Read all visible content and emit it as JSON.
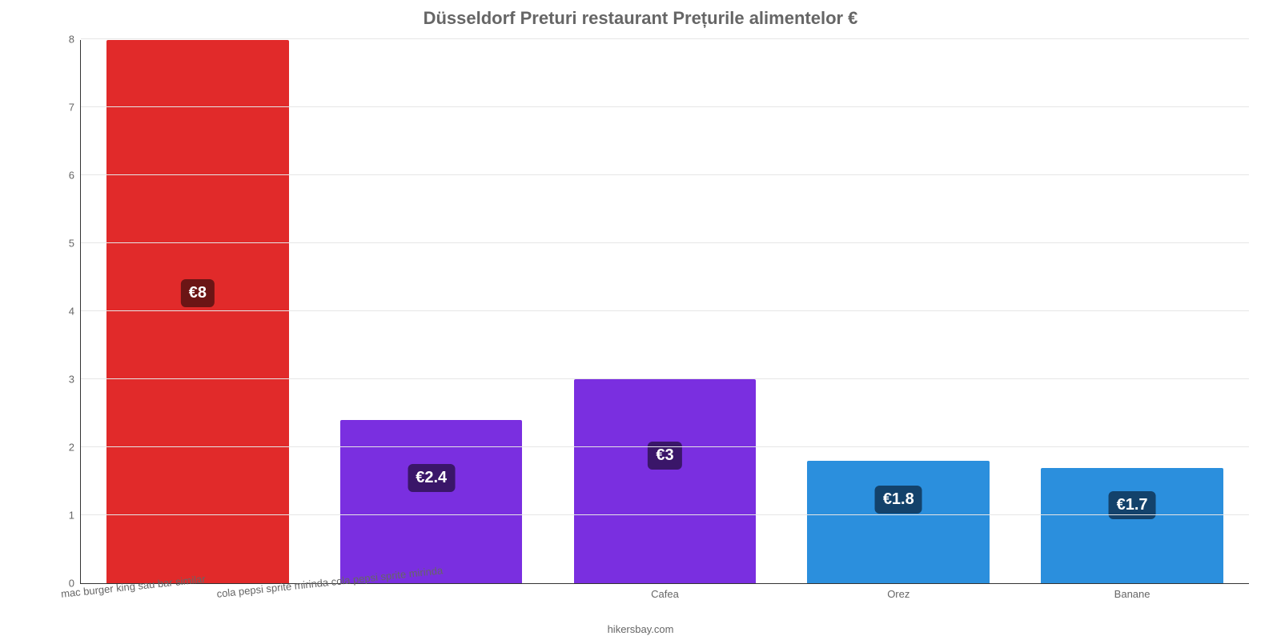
{
  "chart": {
    "type": "bar",
    "title": "Düsseldorf Preturi restaurant Prețurile alimentelor €",
    "title_fontsize": 22,
    "title_color": "#666666",
    "background_color": "#ffffff",
    "grid_color": "#e6e6e6",
    "axis_color": "#333333",
    "ylim": [
      0,
      8
    ],
    "yticks": [
      0,
      1,
      2,
      3,
      4,
      5,
      6,
      7,
      8
    ],
    "ytick_fontsize": 13,
    "ytick_color": "#666666",
    "xtick_fontsize": 13,
    "xtick_color": "#666666",
    "xtick_rotation_deg": -6,
    "bar_width_pct": 78,
    "value_label_fontsize": 20,
    "attribution": "hikersbay.com",
    "attribution_fontsize": 13,
    "attribution_color": "#666666",
    "categories": [
      "mac burger king sau bar similar",
      "cola pepsi sprite mirinda cola pepsi sprite mirinda",
      "Cafea",
      "Orez",
      "Banane"
    ],
    "category_label_align": [
      "rot",
      "rot",
      "center",
      "center",
      "center"
    ],
    "values": [
      8,
      2.4,
      3,
      1.8,
      1.7
    ],
    "value_labels": [
      "€8",
      "€2.4",
      "€3",
      "€1.8",
      "€1.7"
    ],
    "bar_colors": [
      "#e12a2a",
      "#7a2fe0",
      "#7a2fe0",
      "#2b8fdd",
      "#2b8fdd"
    ],
    "badge_colors": [
      "#6b1515",
      "#3a1669",
      "#3a1669",
      "#13426b",
      "#13426b"
    ],
    "badge_positions_pct_from_top": [
      44,
      78,
      74,
      82,
      83
    ]
  }
}
